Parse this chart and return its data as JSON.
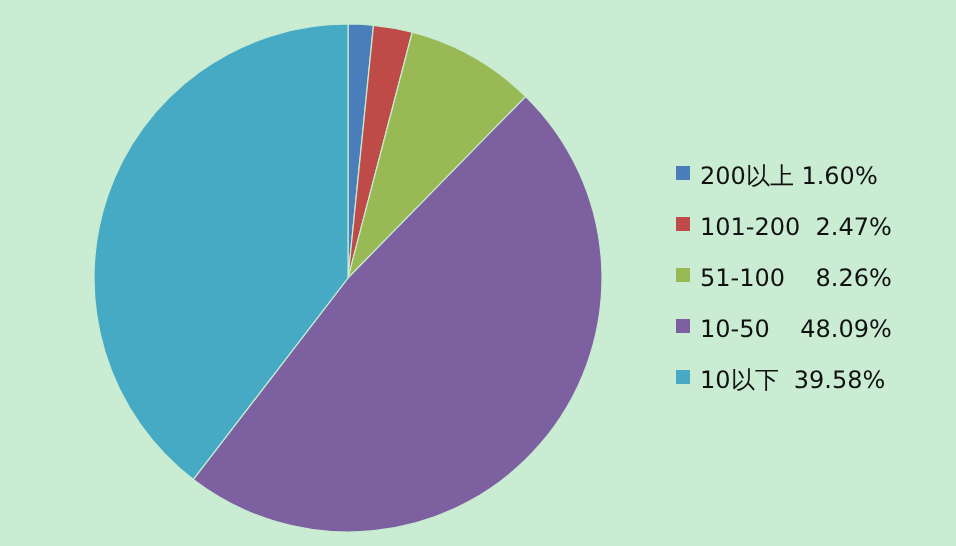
{
  "chart_data": {
    "type": "pie",
    "categories": [
      "200以上 1.60%",
      "101-200  2.47%",
      "51-100    8.26%",
      "10-50    48.09%",
      "10以下  39.58%"
    ],
    "values": [
      1.6,
      2.47,
      8.26,
      48.09,
      39.58
    ],
    "colors": [
      "#4a7ebb",
      "#be4b48",
      "#98b954",
      "#7d60a0",
      "#46aac5"
    ],
    "legend": "right"
  }
}
